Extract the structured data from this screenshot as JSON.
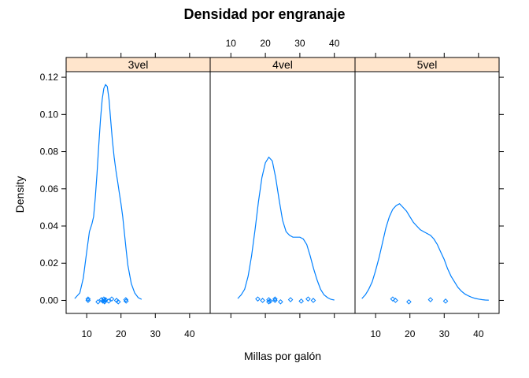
{
  "chart_data": {
    "type": "density",
    "title": "Densidad por engranaje",
    "xlabel": "Millas por galón",
    "ylabel": "Density",
    "xlim": [
      4,
      46
    ],
    "ylim": [
      -0.007,
      0.123
    ],
    "x_ticks": [
      10,
      20,
      30,
      40
    ],
    "y_ticks": [
      0.0,
      0.02,
      0.04,
      0.06,
      0.08,
      0.1,
      0.12
    ],
    "y_tick_labels": [
      "0.00",
      "0.02",
      "0.04",
      "0.06",
      "0.08",
      "0.10",
      "0.12"
    ],
    "x_tick_labels": [
      "10",
      "20",
      "30",
      "40"
    ],
    "line_color": "#0080ff",
    "strip_color": "#ffe5cc",
    "panels": [
      {
        "strip": "3vel",
        "curve": [
          [
            6.5,
            0.001
          ],
          [
            8,
            0.004
          ],
          [
            9,
            0.012
          ],
          [
            10,
            0.026
          ],
          [
            10.8,
            0.037
          ],
          [
            11.5,
            0.041
          ],
          [
            12,
            0.045
          ],
          [
            12.5,
            0.055
          ],
          [
            13,
            0.068
          ],
          [
            13.5,
            0.083
          ],
          [
            14,
            0.097
          ],
          [
            14.5,
            0.108
          ],
          [
            15,
            0.114
          ],
          [
            15.5,
            0.116
          ],
          [
            16,
            0.115
          ],
          [
            16.5,
            0.108
          ],
          [
            17,
            0.097
          ],
          [
            17.5,
            0.086
          ],
          [
            18,
            0.077
          ],
          [
            18.5,
            0.07
          ],
          [
            19,
            0.064
          ],
          [
            19.5,
            0.058
          ],
          [
            20,
            0.052
          ],
          [
            20.5,
            0.045
          ],
          [
            21,
            0.036
          ],
          [
            21.5,
            0.027
          ],
          [
            22,
            0.019
          ],
          [
            23,
            0.009
          ],
          [
            24,
            0.004
          ],
          [
            25,
            0.0015
          ],
          [
            26,
            0.0006
          ]
        ],
        "points": [
          10.4,
          10.4,
          13.3,
          14.3,
          14.7,
          15,
          15.2,
          15.2,
          15.5,
          16.4,
          17.3,
          18.7,
          19.2,
          21.4,
          21.5
        ]
      },
      {
        "strip": "4vel",
        "curve": [
          [
            12,
            0.001
          ],
          [
            13,
            0.003
          ],
          [
            14,
            0.006
          ],
          [
            15,
            0.013
          ],
          [
            16,
            0.024
          ],
          [
            17,
            0.038
          ],
          [
            18,
            0.053
          ],
          [
            19,
            0.066
          ],
          [
            20,
            0.074
          ],
          [
            21,
            0.077
          ],
          [
            22,
            0.075
          ],
          [
            23,
            0.066
          ],
          [
            24,
            0.054
          ],
          [
            25,
            0.043
          ],
          [
            26,
            0.037
          ],
          [
            27,
            0.035
          ],
          [
            28,
            0.034
          ],
          [
            29,
            0.034
          ],
          [
            30,
            0.034
          ],
          [
            31,
            0.033
          ],
          [
            32,
            0.03
          ],
          [
            33,
            0.024
          ],
          [
            34,
            0.017
          ],
          [
            35,
            0.011
          ],
          [
            36,
            0.006
          ],
          [
            37,
            0.003
          ],
          [
            38,
            0.0015
          ],
          [
            39,
            0.0006
          ],
          [
            40,
            0.0002
          ]
        ],
        "points": [
          17.8,
          19.2,
          21,
          21,
          21.4,
          22.8,
          22.8,
          24.4,
          27.3,
          30.4,
          32.4,
          33.9
        ]
      },
      {
        "strip": "5vel",
        "curve": [
          [
            6,
            0.001
          ],
          [
            7,
            0.003
          ],
          [
            8,
            0.006
          ],
          [
            9,
            0.01
          ],
          [
            10,
            0.016
          ],
          [
            11,
            0.023
          ],
          [
            12,
            0.031
          ],
          [
            13,
            0.039
          ],
          [
            14,
            0.045
          ],
          [
            15,
            0.049
          ],
          [
            16,
            0.051
          ],
          [
            17,
            0.052
          ],
          [
            18,
            0.05
          ],
          [
            19,
            0.048
          ],
          [
            20,
            0.045
          ],
          [
            21,
            0.042
          ],
          [
            22,
            0.04
          ],
          [
            23,
            0.038
          ],
          [
            24,
            0.037
          ],
          [
            25,
            0.036
          ],
          [
            26,
            0.035
          ],
          [
            27,
            0.033
          ],
          [
            28,
            0.03
          ],
          [
            29,
            0.026
          ],
          [
            30,
            0.022
          ],
          [
            31,
            0.017
          ],
          [
            32,
            0.013
          ],
          [
            33,
            0.01
          ],
          [
            34,
            0.007
          ],
          [
            35,
            0.005
          ],
          [
            36,
            0.0035
          ],
          [
            37,
            0.0025
          ],
          [
            38,
            0.0017
          ],
          [
            39,
            0.0011
          ],
          [
            40,
            0.0007
          ],
          [
            41,
            0.0004
          ],
          [
            42,
            0.0002
          ],
          [
            43,
            0.0001
          ]
        ],
        "points": [
          15,
          15.8,
          19.7,
          26,
          30.4
        ]
      }
    ]
  }
}
